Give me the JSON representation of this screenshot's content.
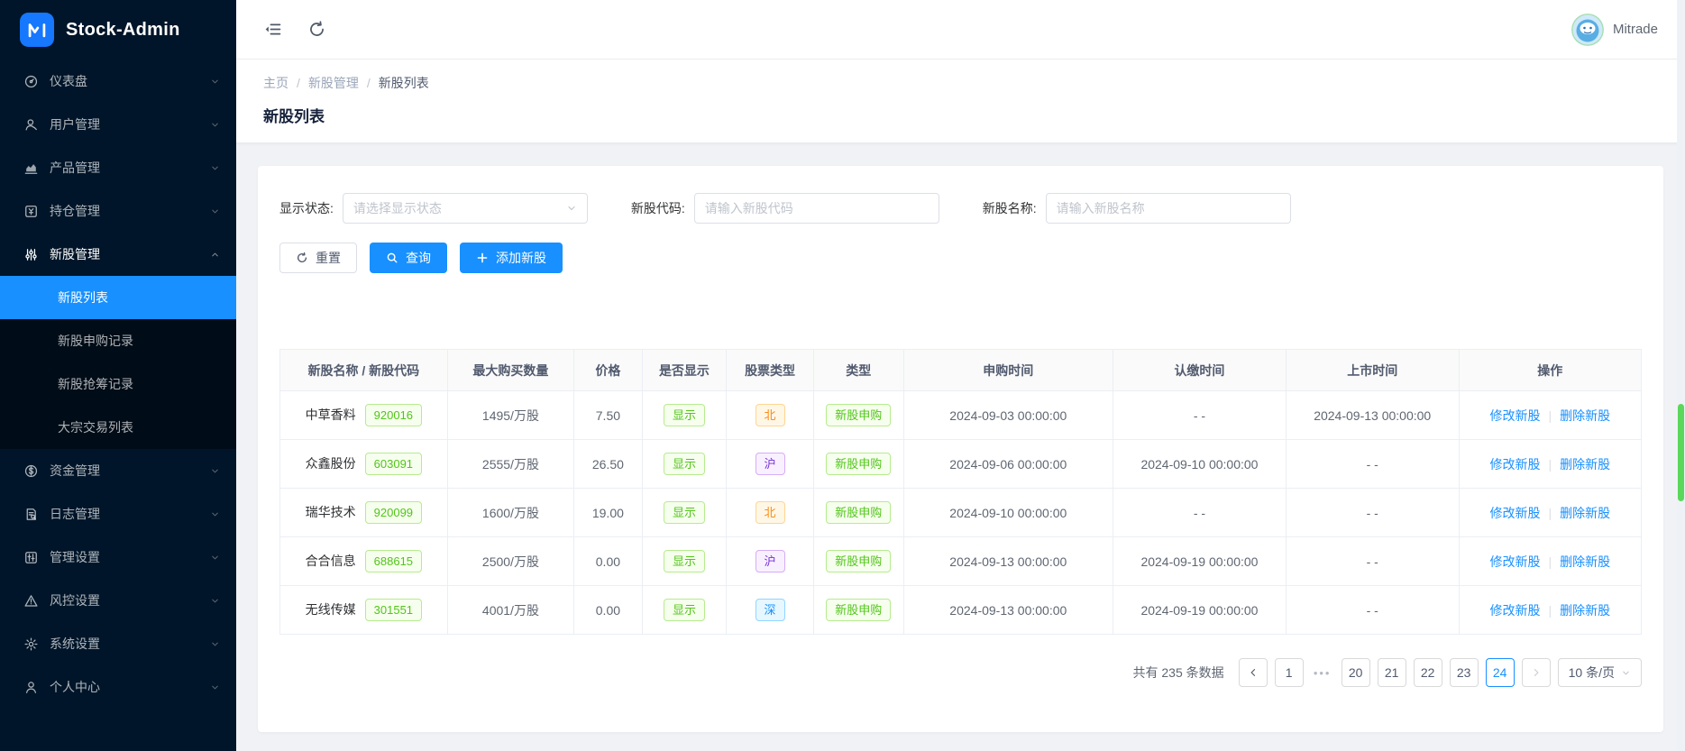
{
  "app": {
    "title": "Stock-Admin",
    "user": "Mitrade"
  },
  "sidebar": {
    "items": [
      {
        "id": "dashboard",
        "label": "仪表盘",
        "icon": "dashboard-icon"
      },
      {
        "id": "users",
        "label": "用户管理",
        "icon": "users-icon"
      },
      {
        "id": "products",
        "label": "产品管理",
        "icon": "products-icon"
      },
      {
        "id": "positions",
        "label": "持仓管理",
        "icon": "positions-icon"
      },
      {
        "id": "ipo",
        "label": "新股管理",
        "icon": "ipo-icon",
        "expanded": true,
        "children": [
          {
            "id": "ipo-list",
            "label": "新股列表",
            "active": true
          },
          {
            "id": "ipo-subscribe-records",
            "label": "新股申购记录"
          },
          {
            "id": "ipo-grab-records",
            "label": "新股抢筹记录"
          },
          {
            "id": "block-trade-list",
            "label": "大宗交易列表"
          }
        ]
      },
      {
        "id": "funds",
        "label": "资金管理",
        "icon": "funds-icon"
      },
      {
        "id": "logs",
        "label": "日志管理",
        "icon": "logs-icon"
      },
      {
        "id": "admin-settings",
        "label": "管理设置",
        "icon": "admin-settings-icon"
      },
      {
        "id": "risk-settings",
        "label": "风控设置",
        "icon": "risk-icon"
      },
      {
        "id": "system-settings",
        "label": "系统设置",
        "icon": "system-icon"
      },
      {
        "id": "profile",
        "label": "个人中心",
        "icon": "profile-icon"
      }
    ]
  },
  "breadcrumb": [
    "主页",
    "新股管理",
    "新股列表"
  ],
  "page_title": "新股列表",
  "filters": {
    "status_label": "显示状态:",
    "status_placeholder": "请选择显示状态",
    "code_label": "新股代码:",
    "code_placeholder": "请输入新股代码",
    "name_label": "新股名称:",
    "name_placeholder": "请输入新股名称",
    "reset_label": "重置",
    "search_label": "查询",
    "add_label": "添加新股"
  },
  "table": {
    "columns": [
      "新股名称 / 新股代码",
      "最大购买数量",
      "价格",
      "是否显示",
      "股票类型",
      "类型",
      "申购时间",
      "认缴时间",
      "上市时间",
      "操作"
    ],
    "col_widths": [
      "12.3%",
      "9.3%",
      "5%",
      "6.2%",
      "6.4%",
      "6.6%",
      "15.4%",
      "12.7%",
      "12.7%",
      "13.4%"
    ],
    "edit_label": "修改新股",
    "delete_label": "删除新股",
    "rows": [
      {
        "name": "中草香料",
        "code": "920016",
        "max_buy": "1495/万股",
        "price": "7.50",
        "visible": "显示",
        "market": "北",
        "market_color": "orange",
        "type": "新股申购",
        "apply_time": "2024-09-03 00:00:00",
        "pay_time": "- -",
        "list_time": "2024-09-13 00:00:00"
      },
      {
        "name": "众鑫股份",
        "code": "603091",
        "max_buy": "2555/万股",
        "price": "26.50",
        "visible": "显示",
        "market": "沪",
        "market_color": "purple",
        "type": "新股申购",
        "apply_time": "2024-09-06 00:00:00",
        "pay_time": "2024-09-10 00:00:00",
        "list_time": "- -"
      },
      {
        "name": "瑞华技术",
        "code": "920099",
        "max_buy": "1600/万股",
        "price": "19.00",
        "visible": "显示",
        "market": "北",
        "market_color": "orange",
        "type": "新股申购",
        "apply_time": "2024-09-10 00:00:00",
        "pay_time": "- -",
        "list_time": "- -"
      },
      {
        "name": "合合信息",
        "code": "688615",
        "max_buy": "2500/万股",
        "price": "0.00",
        "visible": "显示",
        "market": "沪",
        "market_color": "purple",
        "type": "新股申购",
        "apply_time": "2024-09-13 00:00:00",
        "pay_time": "2024-09-19 00:00:00",
        "list_time": "- -"
      },
      {
        "name": "无线传媒",
        "code": "301551",
        "max_buy": "4001/万股",
        "price": "0.00",
        "visible": "显示",
        "market": "深",
        "market_color": "blue",
        "type": "新股申购",
        "apply_time": "2024-09-13 00:00:00",
        "pay_time": "2024-09-19 00:00:00",
        "list_time": "- -"
      }
    ]
  },
  "pagination": {
    "total_text": "共有 235 条数据",
    "pages": [
      "1",
      "•••",
      "20",
      "21",
      "22",
      "23",
      "24"
    ],
    "active_page": "24",
    "page_size": "10 条/页"
  },
  "colors": {
    "accent": "#1890ff",
    "sidebar_bg": "#001529",
    "submenu_bg": "#000c17",
    "tag_green_text": "#52c41a",
    "tag_green_bg": "#f6ffed",
    "tag_green_border": "#b7eb8f",
    "tag_orange_text": "#fa8c16",
    "tag_orange_bg": "#fff7e6",
    "tag_orange_border": "#ffd591",
    "tag_purple_text": "#722ed1",
    "tag_purple_bg": "#f9f0ff",
    "tag_purple_border": "#d3adf7",
    "tag_blue_text": "#1890ff",
    "tag_blue_bg": "#e6f7ff",
    "tag_blue_border": "#91d5ff",
    "scrollbar_thumb": "#5bd75b"
  }
}
